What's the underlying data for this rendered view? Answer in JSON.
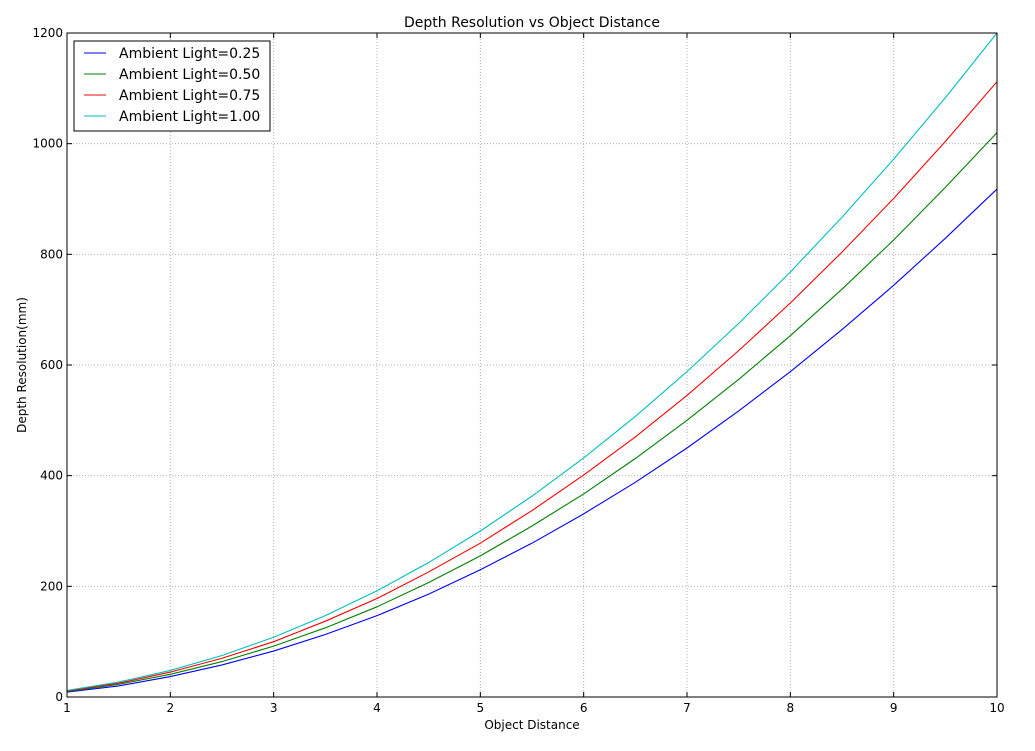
{
  "chart_data": {
    "type": "line",
    "title": "Depth Resolution vs Object Distance",
    "xlabel": "Object Distance",
    "ylabel": "Depth Resolution(mm)",
    "xlim": [
      1,
      10
    ],
    "ylim": [
      0,
      1200
    ],
    "xticks": [
      1,
      2,
      3,
      4,
      5,
      6,
      7,
      8,
      9,
      10
    ],
    "yticks": [
      0,
      200,
      400,
      600,
      800,
      1000,
      1200
    ],
    "grid": true,
    "legend_position": "top-left",
    "x": [
      1,
      1.5,
      2,
      2.5,
      3,
      3.5,
      4,
      4.5,
      5,
      5.5,
      6,
      6.5,
      7,
      7.5,
      8,
      8.5,
      9,
      9.5,
      10
    ],
    "series": [
      {
        "name": "Ambient Light=0.25",
        "color": "#0000ff",
        "values": [
          9,
          20,
          37,
          58,
          83,
          113,
          147,
          186,
          230,
          278,
          331,
          388,
          450,
          517,
          588,
          664,
          744,
          829,
          918
        ]
      },
      {
        "name": "Ambient Light=0.50",
        "color": "#008000",
        "values": [
          10,
          23,
          41,
          64,
          92,
          125,
          163,
          207,
          255,
          309,
          367,
          431,
          500,
          574,
          653,
          737,
          826,
          921,
          1020
        ]
      },
      {
        "name": "Ambient Light=0.75",
        "color": "#ff0000",
        "values": [
          11,
          25,
          45,
          70,
          100,
          137,
          178,
          226,
          278,
          337,
          401,
          470,
          545,
          626,
          712,
          804,
          901,
          1004,
          1112
        ]
      },
      {
        "name": "Ambient Light=1.00",
        "color": "#00bfbf",
        "values": [
          12,
          27,
          48,
          75,
          108,
          147,
          192,
          243,
          300,
          363,
          432,
          507,
          588,
          675,
          768,
          867,
          972,
          1083,
          1200
        ]
      }
    ]
  }
}
